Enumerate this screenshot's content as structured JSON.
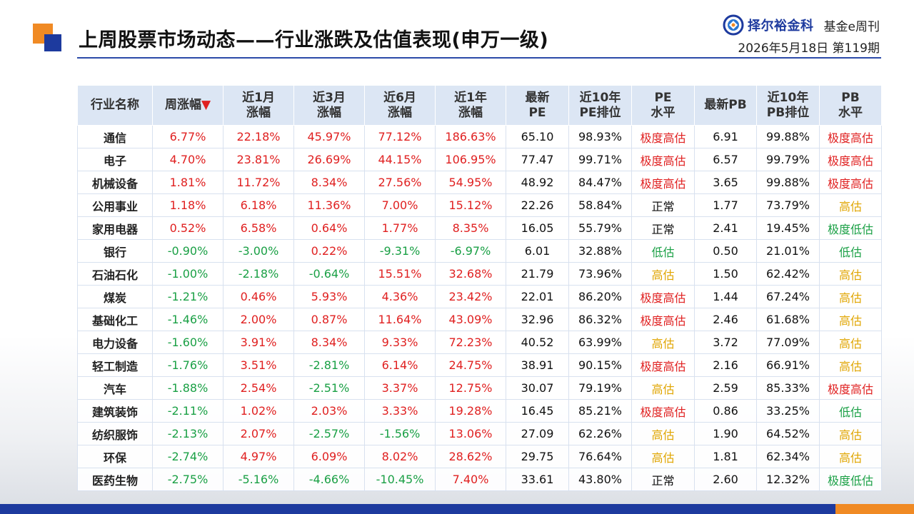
{
  "title": "上周股票市场动态——行业涨跌及估值表现(申万一级)",
  "brand": {
    "name": "择尔裕金科",
    "publication": "基金e周刊",
    "date_issue": "2026年5月18日  第119期",
    "logo_icon": "brand-logo-icon"
  },
  "colors": {
    "up": "#e02020",
    "down": "#1aa045",
    "accent_blue": "#1d3a9e",
    "accent_orange": "#f08a24",
    "header_bg": "#dce6f4"
  },
  "table": {
    "headers": [
      "行业名称",
      "周涨幅▼",
      "近1月\n涨幅",
      "近3月\n涨幅",
      "近6月\n涨幅",
      "近1年\n涨幅",
      "最新\nPE",
      "近10年\nPE排位",
      "PE\n水平",
      "最新PB",
      "近10年\nPB排位",
      "PB\n水平"
    ],
    "rows": [
      [
        "通信",
        "6.77%",
        "22.18%",
        "45.97%",
        "77.12%",
        "186.63%",
        "65.10",
        "98.93%",
        "极度高估",
        "6.91",
        "99.88%",
        "极度高估"
      ],
      [
        "电子",
        "4.70%",
        "23.81%",
        "26.69%",
        "44.15%",
        "106.95%",
        "77.47",
        "99.71%",
        "极度高估",
        "6.57",
        "99.79%",
        "极度高估"
      ],
      [
        "机械设备",
        "1.81%",
        "11.72%",
        "8.34%",
        "27.56%",
        "54.95%",
        "48.92",
        "84.47%",
        "极度高估",
        "3.65",
        "99.88%",
        "极度高估"
      ],
      [
        "公用事业",
        "1.18%",
        "6.18%",
        "11.36%",
        "7.00%",
        "15.12%",
        "22.26",
        "58.84%",
        "正常",
        "1.77",
        "73.79%",
        "高估"
      ],
      [
        "家用电器",
        "0.52%",
        "6.58%",
        "0.64%",
        "1.77%",
        "8.35%",
        "16.05",
        "55.79%",
        "正常",
        "2.41",
        "19.45%",
        "极度低估"
      ],
      [
        "银行",
        "-0.90%",
        "-3.00%",
        "0.22%",
        "-9.31%",
        "-6.97%",
        "6.01",
        "32.88%",
        "低估",
        "0.50",
        "21.01%",
        "低估"
      ],
      [
        "石油石化",
        "-1.00%",
        "-2.18%",
        "-0.64%",
        "15.51%",
        "32.68%",
        "21.79",
        "73.96%",
        "高估",
        "1.50",
        "62.42%",
        "高估"
      ],
      [
        "煤炭",
        "-1.21%",
        "0.46%",
        "5.93%",
        "4.36%",
        "23.42%",
        "22.01",
        "86.20%",
        "极度高估",
        "1.44",
        "67.24%",
        "高估"
      ],
      [
        "基础化工",
        "-1.46%",
        "2.00%",
        "0.87%",
        "11.64%",
        "43.09%",
        "32.96",
        "86.32%",
        "极度高估",
        "2.46",
        "61.68%",
        "高估"
      ],
      [
        "电力设备",
        "-1.60%",
        "3.91%",
        "8.34%",
        "9.33%",
        "72.23%",
        "40.52",
        "63.99%",
        "高估",
        "3.72",
        "77.09%",
        "高估"
      ],
      [
        "轻工制造",
        "-1.76%",
        "3.51%",
        "-2.81%",
        "6.14%",
        "24.75%",
        "38.91",
        "90.15%",
        "极度高估",
        "2.16",
        "66.91%",
        "高估"
      ],
      [
        "汽车",
        "-1.88%",
        "2.54%",
        "-2.51%",
        "3.37%",
        "12.75%",
        "30.07",
        "79.19%",
        "高估",
        "2.59",
        "85.33%",
        "极度高估"
      ],
      [
        "建筑装饰",
        "-2.11%",
        "1.02%",
        "2.03%",
        "3.33%",
        "19.28%",
        "16.45",
        "85.21%",
        "极度高估",
        "0.86",
        "33.25%",
        "低估"
      ],
      [
        "纺织服饰",
        "-2.13%",
        "2.07%",
        "-2.57%",
        "-1.56%",
        "13.06%",
        "27.09",
        "62.26%",
        "高估",
        "1.90",
        "64.52%",
        "高估"
      ],
      [
        "环保",
        "-2.74%",
        "4.97%",
        "6.09%",
        "8.02%",
        "28.62%",
        "29.75",
        "76.64%",
        "高估",
        "1.81",
        "62.34%",
        "高估"
      ],
      [
        "医药生物",
        "-2.75%",
        "-5.16%",
        "-4.66%",
        "-10.45%",
        "7.40%",
        "33.61",
        "43.80%",
        "正常",
        "2.60",
        "12.32%",
        "极度低估"
      ]
    ]
  }
}
